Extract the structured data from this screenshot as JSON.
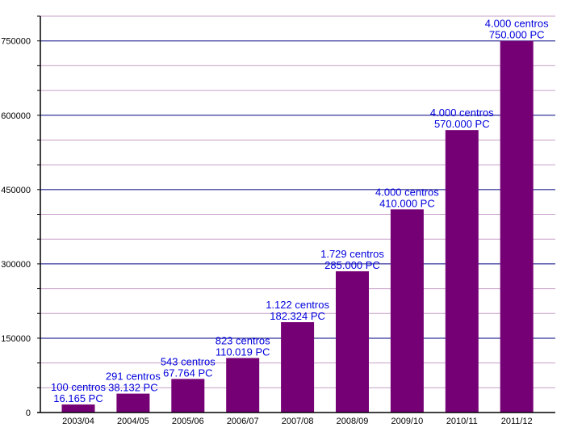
{
  "chart_data": {
    "type": "bar",
    "categories": [
      "2003/04",
      "2004/05",
      "2005/06",
      "2006/07",
      "2007/08",
      "2008/09",
      "2009/10",
      "2010/11",
      "2011/12"
    ],
    "values": [
      16165,
      38132,
      67764,
      110019,
      182324,
      285000,
      410000,
      570000,
      750000
    ],
    "data_labels": [
      [
        "100 centros",
        "16.165 PC"
      ],
      [
        "291 centros",
        "38.132 PC"
      ],
      [
        "543 centros",
        "67.764 PC"
      ],
      [
        "823 centros",
        "110.019 PC"
      ],
      [
        "1.122 centros",
        "182.324 PC"
      ],
      [
        "1.729 centros",
        "285.000 PC"
      ],
      [
        "4.000 centros",
        "410.000 PC"
      ],
      [
        "4.000 centros",
        "570.000 PC"
      ],
      [
        "4.000 centros",
        "750.000 PC"
      ]
    ],
    "yticks": [
      0,
      150000,
      300000,
      450000,
      600000,
      750000
    ],
    "ylim": [
      0,
      800000
    ],
    "minor_step": 50000,
    "grid": true,
    "colors": {
      "bar": "#750075",
      "major_grid": "#000080",
      "minor_grid": "#c8a0c8",
      "label": "#0000dd"
    }
  }
}
